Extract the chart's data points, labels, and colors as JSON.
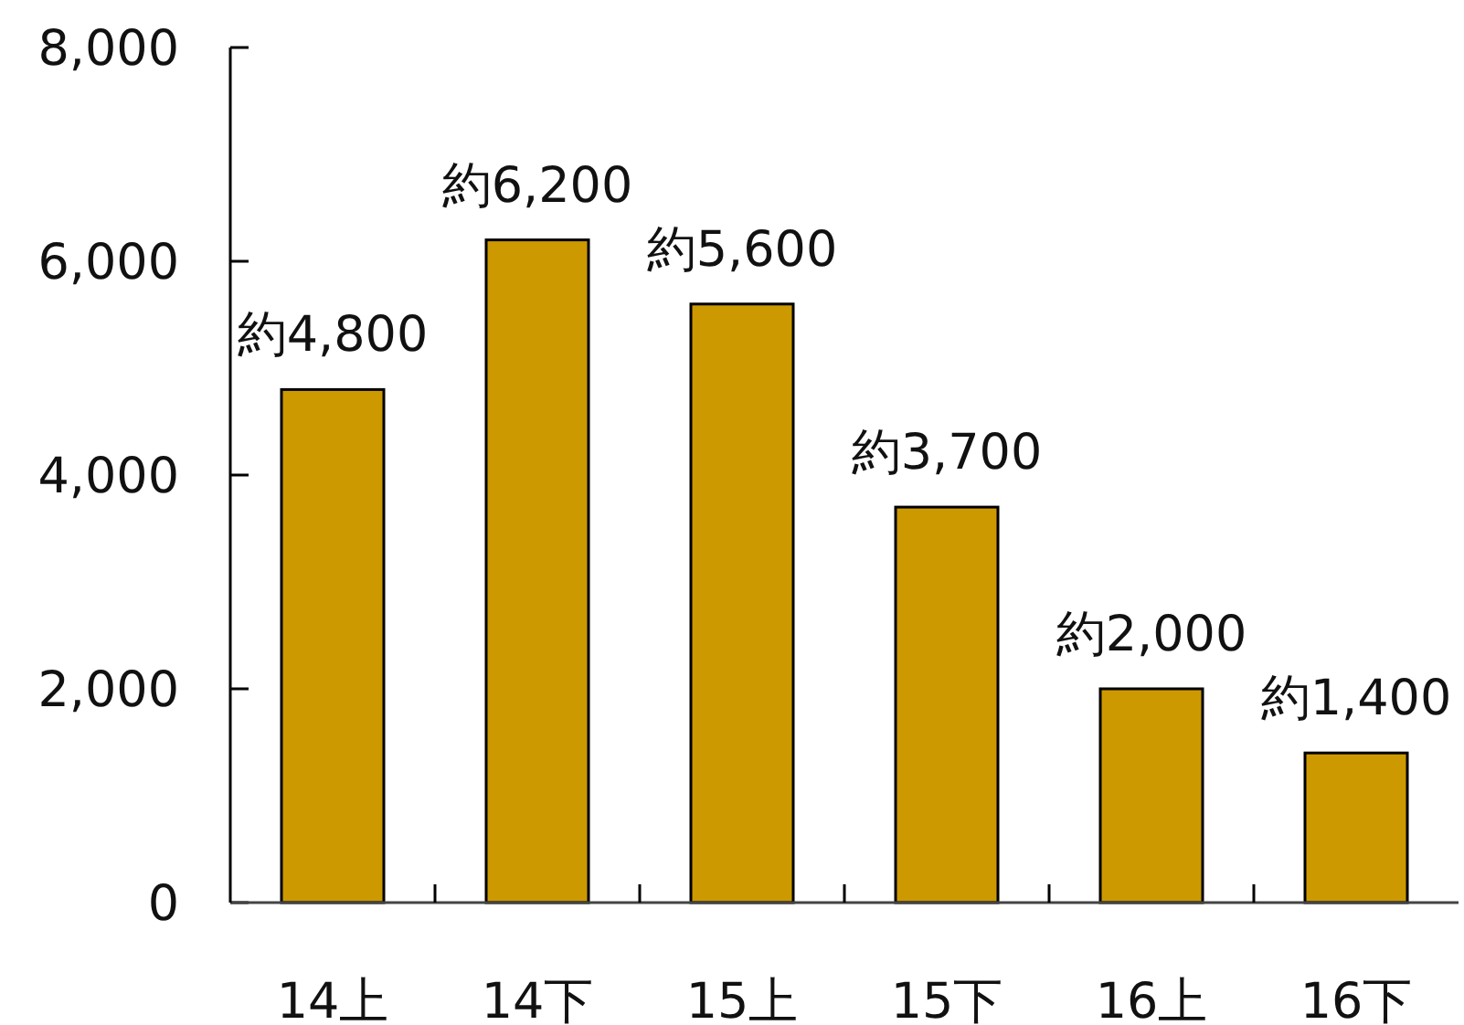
{
  "chart_data": {
    "type": "bar",
    "categories": [
      "14上",
      "14下",
      "15上",
      "15下",
      "16上",
      "16下"
    ],
    "values": [
      4800,
      6200,
      5600,
      3700,
      2000,
      1400
    ],
    "value_labels": [
      "約4,800",
      "約6,200",
      "約5,600",
      "約3,700",
      "約2,000",
      "約1,400"
    ],
    "color": "#cc9900",
    "ylim": [
      0,
      8000
    ],
    "yticks": [
      0,
      {
        "value": 2000,
        "label": "2,000"
      },
      {
        "value": 4000,
        "label": "4,000"
      },
      {
        "value": 6000,
        "label": "6,000"
      },
      {
        "value": 8000,
        "label": "8,000"
      }
    ]
  }
}
